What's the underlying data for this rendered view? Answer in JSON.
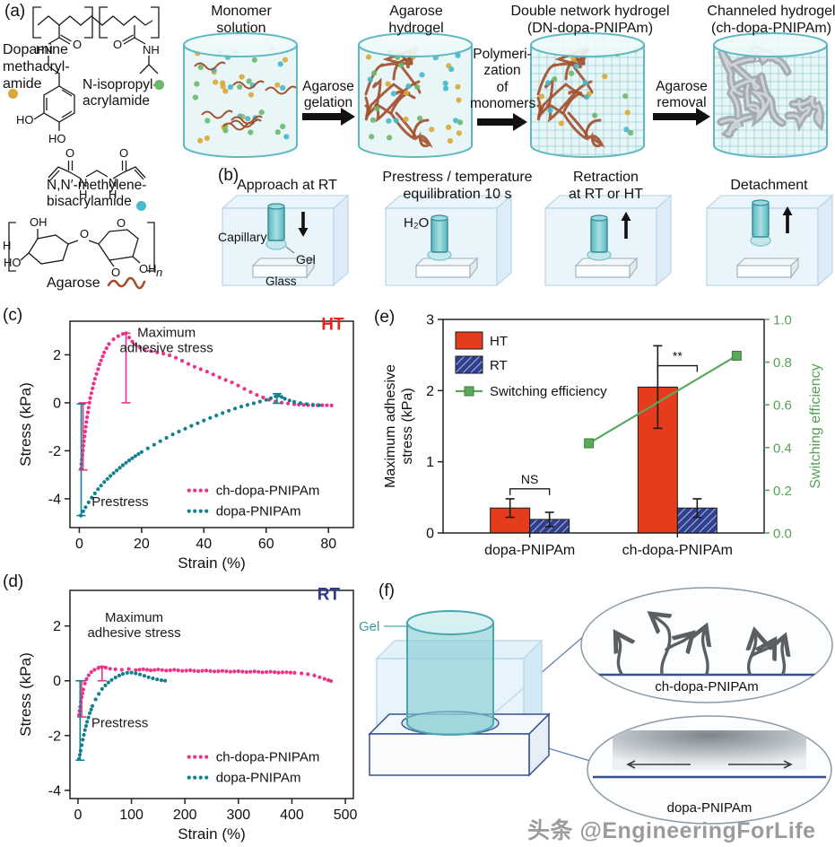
{
  "panels": {
    "a": "(a)",
    "b": "(b)",
    "c": "(c)",
    "d": "(d)",
    "e": "(e)",
    "f": "(f)"
  },
  "watermark": "头条 @EngineeringForLife",
  "panel_a": {
    "monomers": [
      {
        "name": "Dopamine\nmethacryl-\namide",
        "color": "#d9a93a"
      },
      {
        "name": "N-isopropyl-\nacrylamide",
        "color": "#6cb96d"
      },
      {
        "name": "N,N′-methylene-\nbisacrylamide",
        "color": "#49b9c9"
      },
      {
        "name": "Agarose",
        "color": "#a3502e"
      }
    ],
    "atoms": {
      "o_amide1": "O",
      "hn": "HN",
      "ho1": "HO",
      "ho2": "HO",
      "o_amide2": "O",
      "nh": "NH",
      "o_bis1": "O",
      "o_bis2": "O",
      "n_bis1": "N",
      "h_bis1": "H",
      "n_bis2": "N",
      "h_bis2": "H",
      "h_left": "H",
      "oh1": "OH",
      "ho3": "HO",
      "o_bridge": "O",
      "o_ring2": "O",
      "o_anhydro": "O",
      "oh2": "OH",
      "sub_n": "n"
    },
    "stages": [
      {
        "label": "Monomer\nsolution"
      },
      {
        "label": "Agarose\nhydrogel"
      },
      {
        "label": "Double network hydrogel\n(DN-dopa-PNIPAm)"
      },
      {
        "label": "Channeled hydrogel\n(ch-dopa-PNIPAm)"
      }
    ],
    "arrows": [
      {
        "label": "Agarose\ngelation"
      },
      {
        "label": "Polymeri-\nzation\nof\nmonomers"
      },
      {
        "label": "Agarose\nremoval"
      }
    ],
    "colors": {
      "cylinder_stroke": "#5fb8c0",
      "cylinder_fill": "#e2f3f5",
      "network": "#a3502e",
      "channel": "#a0a6ac",
      "mesh": "#8fd0d6"
    }
  },
  "panel_b": {
    "steps": [
      {
        "title": "Approach at RT"
      },
      {
        "title": "Prestress / temperature\nequilibration 10 s"
      },
      {
        "title": "Retraction\nat RT or HT"
      },
      {
        "title": "Detachment"
      }
    ],
    "labels": {
      "capillary": "Capillary",
      "gel": "Gel",
      "glass": "Glass",
      "water": "H₂O"
    }
  },
  "panel_f": {
    "gel_label": "Gel",
    "inset_top_label": "ch-dopa-PNIPAm",
    "inset_bottom_label": "dopa-PNIPAm"
  },
  "chart_data": [
    {
      "id": "c",
      "type": "scatter",
      "xlabel": "Strain (%)",
      "ylabel": "Stress (kPa)",
      "xlim": [
        -3,
        88
      ],
      "ylim": [
        -5.2,
        3.4
      ],
      "xticks": [
        0,
        20,
        40,
        60,
        80
      ],
      "yticks": [
        -4,
        -2,
        0,
        2
      ],
      "series": [
        {
          "name": "ch-dopa-PNIPAm",
          "color": "#ec3388",
          "points": [
            [
              0.5,
              -2.75
            ],
            [
              1.5,
              -1.6
            ],
            [
              2.5,
              -0.6
            ],
            [
              3.5,
              0.2
            ],
            [
              5,
              1.0
            ],
            [
              6.5,
              1.6
            ],
            [
              8,
              2.1
            ],
            [
              9.5,
              2.45
            ],
            [
              11,
              2.65
            ],
            [
              12.5,
              2.78
            ],
            [
              14,
              2.87
            ],
            [
              15,
              2.9
            ],
            [
              16,
              2.72
            ],
            [
              17,
              2.55
            ],
            [
              18,
              2.42
            ],
            [
              19.5,
              2.3
            ],
            [
              21,
              2.22
            ],
            [
              23,
              2.15
            ],
            [
              25,
              2.1
            ],
            [
              27,
              2.05
            ],
            [
              29,
              1.98
            ],
            [
              31,
              1.88
            ],
            [
              33,
              1.75
            ],
            [
              35,
              1.62
            ],
            [
              37,
              1.5
            ],
            [
              39,
              1.4
            ],
            [
              41,
              1.3
            ],
            [
              43,
              1.18
            ],
            [
              45,
              1.06
            ],
            [
              47,
              0.95
            ],
            [
              49,
              0.85
            ],
            [
              51,
              0.72
            ],
            [
              53,
              0.58
            ],
            [
              55,
              0.45
            ],
            [
              57,
              0.33
            ],
            [
              59,
              0.22
            ],
            [
              61,
              0.13
            ],
            [
              63,
              0.06
            ],
            [
              65,
              0.01
            ],
            [
              67,
              -0.03
            ],
            [
              69,
              -0.06
            ],
            [
              72,
              -0.09
            ],
            [
              75,
              -0.1
            ],
            [
              78,
              -0.1
            ],
            [
              81,
              -0.11
            ]
          ]
        },
        {
          "name": "dopa-PNIPAm",
          "color": "#12808e",
          "points": [
            [
              0.5,
              -4.7
            ],
            [
              2,
              -4.35
            ],
            [
              4,
              -3.95
            ],
            [
              6,
              -3.6
            ],
            [
              8,
              -3.3
            ],
            [
              10,
              -3.05
            ],
            [
              12,
              -2.82
            ],
            [
              14,
              -2.6
            ],
            [
              16,
              -2.4
            ],
            [
              18,
              -2.22
            ],
            [
              20,
              -2.05
            ],
            [
              22,
              -1.9
            ],
            [
              24,
              -1.75
            ],
            [
              26,
              -1.6
            ],
            [
              28,
              -1.46
            ],
            [
              30,
              -1.32
            ],
            [
              32,
              -1.2
            ],
            [
              34,
              -1.08
            ],
            [
              36,
              -0.96
            ],
            [
              38,
              -0.85
            ],
            [
              40,
              -0.74
            ],
            [
              42,
              -0.63
            ],
            [
              44,
              -0.53
            ],
            [
              46,
              -0.43
            ],
            [
              48,
              -0.33
            ],
            [
              50,
              -0.24
            ],
            [
              52,
              -0.16
            ],
            [
              54,
              -0.09
            ],
            [
              56,
              -0.02
            ],
            [
              58,
              0.05
            ],
            [
              60,
              0.12
            ],
            [
              61.5,
              0.19
            ],
            [
              63,
              0.27
            ],
            [
              64,
              0.3
            ],
            [
              65,
              0.24
            ],
            [
              66,
              0.17
            ],
            [
              67.5,
              0.1
            ],
            [
              69,
              0.04
            ],
            [
              71,
              -0.01
            ],
            [
              73,
              -0.05
            ],
            [
              75,
              -0.08
            ],
            [
              77,
              -0.1
            ]
          ]
        }
      ],
      "error_bars": [
        {
          "x": 15,
          "y1": 0,
          "y2": 2.9,
          "color": "#ec3388"
        },
        {
          "x": 1.2,
          "y1": -2.8,
          "y2": 0,
          "color": "#ec3388"
        },
        {
          "x": 0.6,
          "y1": -4.7,
          "y2": -0.05,
          "color": "#12808e"
        },
        {
          "x": 63.5,
          "y1": -0.02,
          "y2": 0.38,
          "color": "#12808e"
        }
      ],
      "annotations": [
        {
          "text": "Maximum\nadhesive stress",
          "x": 28,
          "y": 2.75,
          "anchor": "middle",
          "size": 15,
          "color": "#1a1a1a"
        },
        {
          "text": "Prestress",
          "x": 4,
          "y": -4.3,
          "anchor": "start",
          "size": 15,
          "color": "#1a1a1a"
        },
        {
          "text": "HT",
          "x": 85,
          "y": 3.05,
          "anchor": "end",
          "size": 19,
          "color": "#e8251c",
          "bold": true
        }
      ],
      "legend": {
        "fx": 0.42,
        "fy": 0.82,
        "entries": [
          {
            "label": "ch-dopa-PNIPAm",
            "color": "#ec3388"
          },
          {
            "label": "dopa-PNIPAm",
            "color": "#12808e"
          }
        ]
      }
    },
    {
      "id": "d",
      "type": "scatter",
      "xlabel": "Strain (%)",
      "ylabel": "Stress (kPa)",
      "xlim": [
        -15,
        515
      ],
      "ylim": [
        -4.3,
        3.3
      ],
      "xticks": [
        0,
        100,
        200,
        300,
        400,
        500
      ],
      "yticks": [
        -4,
        -2,
        0,
        2
      ],
      "series": [
        {
          "name": "ch-dopa-PNIPAm",
          "color": "#ec3388",
          "points": [
            [
              2,
              -1.25
            ],
            [
              4,
              -0.95
            ],
            [
              7,
              -0.6
            ],
            [
              10,
              -0.32
            ],
            [
              13,
              -0.1
            ],
            [
              16,
              0.06
            ],
            [
              20,
              0.2
            ],
            [
              25,
              0.32
            ],
            [
              31,
              0.4
            ],
            [
              38,
              0.46
            ],
            [
              45,
              0.5
            ],
            [
              52,
              0.48
            ],
            [
              60,
              0.44
            ],
            [
              70,
              0.42
            ],
            [
              82,
              0.4
            ],
            [
              95,
              0.43
            ],
            [
              108,
              0.39
            ],
            [
              122,
              0.42
            ],
            [
              136,
              0.38
            ],
            [
              150,
              0.41
            ],
            [
              165,
              0.37
            ],
            [
              180,
              0.4
            ],
            [
              195,
              0.36
            ],
            [
              210,
              0.38
            ],
            [
              225,
              0.35
            ],
            [
              240,
              0.37
            ],
            [
              255,
              0.34
            ],
            [
              270,
              0.36
            ],
            [
              285,
              0.33
            ],
            [
              300,
              0.35
            ],
            [
              315,
              0.32
            ],
            [
              330,
              0.34
            ],
            [
              345,
              0.31
            ],
            [
              360,
              0.33
            ],
            [
              375,
              0.3
            ],
            [
              390,
              0.31
            ],
            [
              405,
              0.29
            ],
            [
              418,
              0.27
            ],
            [
              430,
              0.24
            ],
            [
              442,
              0.19
            ],
            [
              452,
              0.13
            ],
            [
              461,
              0.07
            ],
            [
              468,
              0.02
            ],
            [
              473,
              -0.01
            ]
          ]
        },
        {
          "name": "dopa-PNIPAm",
          "color": "#12808e",
          "points": [
            [
              2,
              -2.85
            ],
            [
              5,
              -2.55
            ],
            [
              9,
              -2.15
            ],
            [
              13,
              -1.8
            ],
            [
              17,
              -1.5
            ],
            [
              22,
              -1.18
            ],
            [
              27,
              -0.92
            ],
            [
              33,
              -0.68
            ],
            [
              39,
              -0.48
            ],
            [
              45,
              -0.3
            ],
            [
              51,
              -0.17
            ],
            [
              57,
              -0.06
            ],
            [
              63,
              0.03
            ],
            [
              70,
              0.12
            ],
            [
              77,
              0.19
            ],
            [
              84,
              0.25
            ],
            [
              92,
              0.29
            ],
            [
              100,
              0.3
            ],
            [
              108,
              0.27
            ],
            [
              116,
              0.23
            ],
            [
              124,
              0.18
            ],
            [
              132,
              0.13
            ],
            [
              140,
              0.09
            ],
            [
              148,
              0.05
            ],
            [
              156,
              0.02
            ],
            [
              163,
              0
            ]
          ]
        }
      ],
      "error_bars": [
        {
          "x": 45,
          "y1": 0,
          "y2": 0.52,
          "color": "#ec3388"
        },
        {
          "x": 7,
          "y1": -1.32,
          "y2": 0,
          "color": "#ec3388"
        },
        {
          "x": 4,
          "y1": -2.9,
          "y2": 0,
          "color": "#12808e"
        }
      ],
      "annotations": [
        {
          "text": "Maximum\nadhesive stress",
          "x": 105,
          "y": 2.15,
          "anchor": "middle",
          "size": 15,
          "color": "#1a1a1a"
        },
        {
          "text": "Prestress",
          "x": 25,
          "y": -1.7,
          "anchor": "start",
          "size": 15,
          "color": "#1a1a1a"
        },
        {
          "text": "RT",
          "x": 490,
          "y": 2.95,
          "anchor": "end",
          "size": 19,
          "color": "#2b3a90",
          "bold": true
        }
      ],
      "legend": {
        "fx": 0.42,
        "fy": 0.8,
        "entries": [
          {
            "label": "ch-dopa-PNIPAm",
            "color": "#ec3388"
          },
          {
            "label": "dopa-PNIPAm",
            "color": "#12808e"
          }
        ]
      }
    },
    {
      "id": "e",
      "type": "bar",
      "categories": [
        "dopa-PNIPAm",
        "ch-dopa-PNIPAm"
      ],
      "ylabel": "Maximum adhesive\nstress (kPa)",
      "y2label": "Switching efficiency",
      "ylim": [
        0,
        3
      ],
      "yticks": [
        0,
        1,
        2,
        3
      ],
      "y2lim": [
        0,
        1
      ],
      "y2ticks": [
        "0.0",
        "0.2",
        "0.4",
        "0.6",
        "0.8",
        "1.0"
      ],
      "axis2_color": "#55a255",
      "series": [
        {
          "name": "HT",
          "color": "#e63c1e",
          "hatch": false,
          "values": [
            0.35,
            2.05
          ],
          "errors": [
            0.13,
            0.58
          ]
        },
        {
          "name": "RT",
          "color": "#30408f",
          "hatch": true,
          "values": [
            0.19,
            0.35
          ],
          "errors": [
            0.1,
            0.13
          ]
        }
      ],
      "line_series": {
        "name": "Switching efficiency",
        "color": "#5aa85a",
        "values": [
          0.42,
          0.83
        ]
      },
      "significance": [
        {
          "group": 0,
          "label": "NS",
          "y": 0.62
        },
        {
          "group": 1,
          "label": "**",
          "y": 2.35
        }
      ]
    }
  ]
}
